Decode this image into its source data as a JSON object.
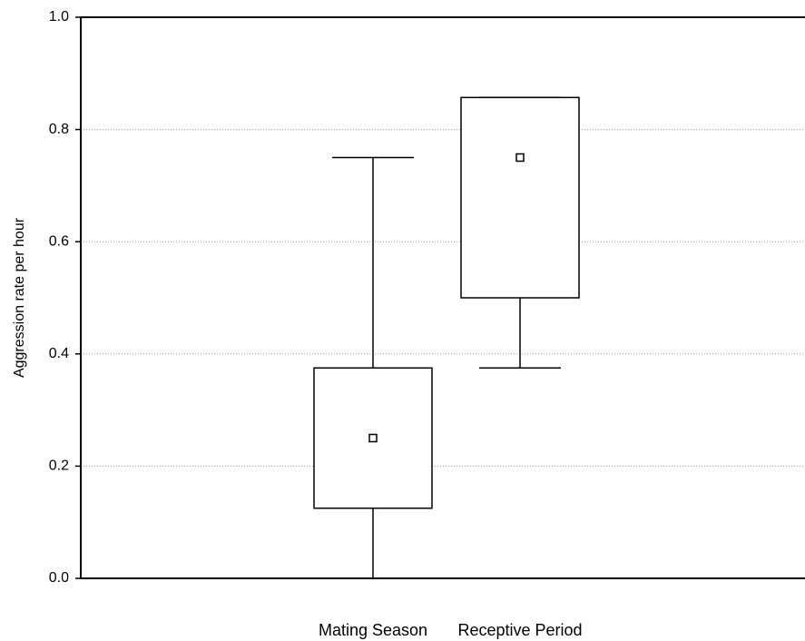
{
  "chart_data": {
    "type": "box",
    "title": "",
    "xlabel": "",
    "ylabel": "Aggression rate per hour",
    "ylim": [
      0.0,
      1.0
    ],
    "yticks": [
      "0.0",
      "0.2",
      "0.4",
      "0.6",
      "0.8",
      "1.0"
    ],
    "grid": "horizontal-dotted",
    "categories": [
      "Mating Season",
      "Receptive Period"
    ],
    "boxes": [
      {
        "category": "Mating Season",
        "whisker_low": 0.0,
        "q1": 0.125,
        "q3": 0.375,
        "whisker_high": 0.75,
        "mean": 0.25
      },
      {
        "category": "Receptive Period",
        "whisker_low": 0.375,
        "q1": 0.5,
        "q3": 0.857,
        "whisker_high": 0.857,
        "mean": 0.75
      }
    ]
  }
}
